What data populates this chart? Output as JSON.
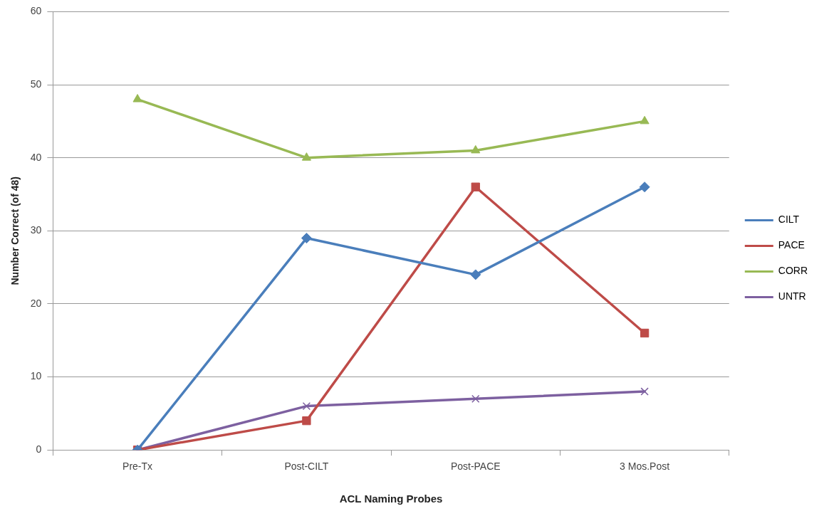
{
  "chart_data": {
    "type": "line",
    "xlabel": "ACL Naming Probes",
    "ylabel": "Number Correct (of 48)",
    "categories": [
      "Pre-Tx",
      "Post-CILT",
      "Post-PACE",
      "3 Mos.Post"
    ],
    "series": [
      {
        "name": "CILT",
        "color": "#4a7ebb",
        "values": [
          0,
          29,
          24,
          36
        ],
        "marker": "diamond"
      },
      {
        "name": "PACE",
        "color": "#be4b48",
        "values": [
          0,
          4,
          36,
          16
        ],
        "marker": "square"
      },
      {
        "name": "CORR",
        "color": "#98b954",
        "values": [
          48,
          40,
          41,
          45
        ],
        "marker": "triangle"
      },
      {
        "name": "UNTR",
        "color": "#7d60a0",
        "values": [
          0,
          6,
          7,
          8
        ],
        "marker": "cross"
      }
    ],
    "ylim": [
      0,
      60
    ],
    "yticks": [
      0,
      10,
      20,
      30,
      40,
      50,
      60
    ],
    "grid": "y",
    "legend": "right",
    "line_style": "solid"
  }
}
